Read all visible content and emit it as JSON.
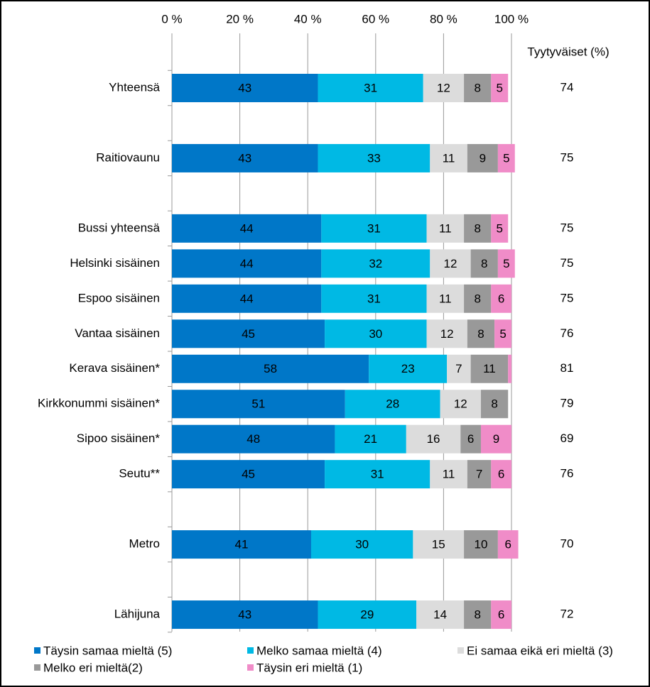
{
  "chart_data": {
    "type": "stacked-bar-horizontal",
    "categories": [
      "Yhteensä",
      null,
      "Raitiovaunu",
      null,
      "Bussi yhteensä",
      "Helsinki sisäinen",
      "Espoo sisäinen",
      "Vantaa sisäinen",
      "Kerava sisäinen*",
      "Kirkkonummi sisäinen*",
      "Sipoo sisäinen*",
      "Seutu**",
      null,
      "Metro",
      null,
      "Lähijuna"
    ],
    "series": [
      {
        "name": "Täysin samaa mieltä (5)",
        "color": "#0077c8",
        "values": [
          43,
          null,
          43,
          null,
          44,
          44,
          44,
          45,
          58,
          51,
          48,
          45,
          null,
          41,
          null,
          43
        ]
      },
      {
        "name": "Melko samaa mieltä (4)",
        "color": "#00b9e4",
        "values": [
          31,
          null,
          33,
          null,
          31,
          32,
          31,
          30,
          23,
          28,
          21,
          31,
          null,
          30,
          null,
          29
        ]
      },
      {
        "name": "Ei samaa eikä eri mieltä (3)",
        "color": "#dcdcdc",
        "values": [
          12,
          null,
          11,
          null,
          11,
          12,
          11,
          12,
          7,
          12,
          16,
          11,
          null,
          15,
          null,
          14
        ]
      },
      {
        "name": "Melko eri mieltä(2)",
        "color": "#999999",
        "values": [
          8,
          null,
          9,
          null,
          8,
          8,
          8,
          8,
          11,
          8,
          6,
          7,
          null,
          10,
          null,
          8
        ]
      },
      {
        "name": "Täysin eri mieltä (1)",
        "color": "#f08cc8",
        "values": [
          5,
          null,
          5,
          null,
          5,
          5,
          6,
          5,
          1,
          null,
          9,
          6,
          null,
          6,
          null,
          6
        ]
      }
    ],
    "xlim": [
      0,
      100
    ],
    "xticks": [
      {
        "value": 0,
        "label": "0 %"
      },
      {
        "value": 20,
        "label": "20 %"
      },
      {
        "value": 40,
        "label": "40 %"
      },
      {
        "value": 60,
        "label": "60 %"
      },
      {
        "value": 80,
        "label": "80 %"
      },
      {
        "value": 100,
        "label": "100 %"
      }
    ],
    "grid": true,
    "satisfied": {
      "label": "Tyytyväiset (%)",
      "values": [
        74,
        null,
        75,
        null,
        75,
        75,
        75,
        76,
        81,
        79,
        69,
        76,
        null,
        70,
        null,
        72
      ]
    }
  }
}
